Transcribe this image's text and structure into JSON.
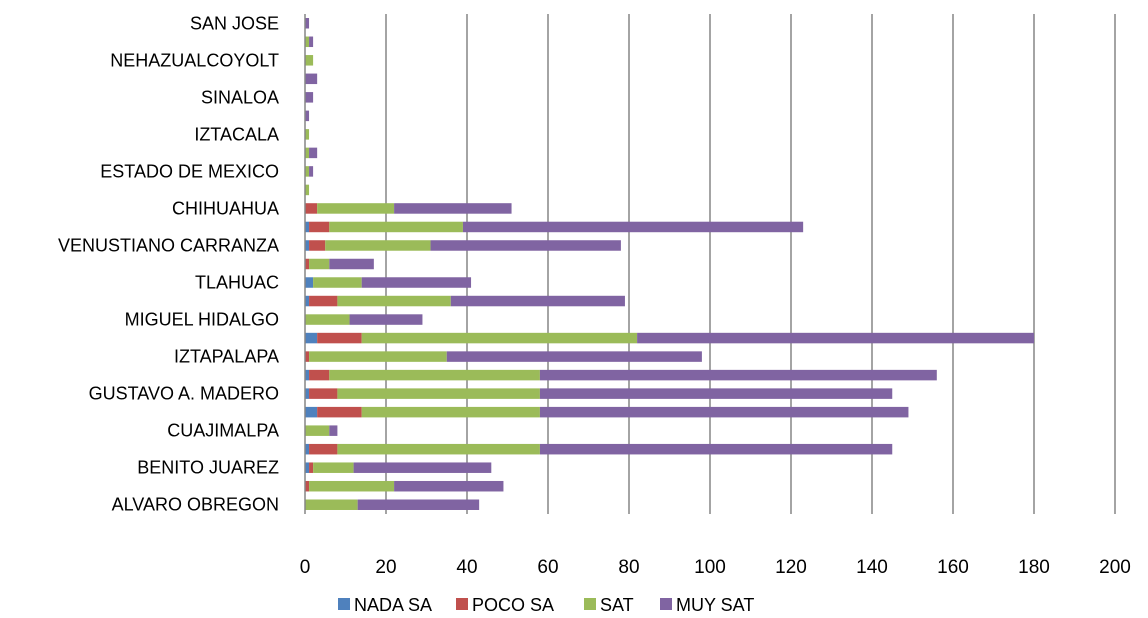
{
  "chart_data": {
    "type": "bar",
    "orientation": "horizontal",
    "stacked": true,
    "categories": [
      "ALVARO OBREGON",
      "",
      "BENITO JUAREZ",
      "",
      "CUAJIMALPA",
      "",
      "GUSTAVO A. MADERO",
      "",
      "IZTAPALAPA",
      "",
      "MIGUEL HIDALGO",
      "",
      "TLAHUAC",
      "",
      "VENUSTIANO CARRANZA",
      "",
      "CHIHUAHUA",
      "",
      "ESTADO DE MEXICO",
      "",
      "IZTACALA",
      "",
      "SINALOA",
      "",
      "NEHAZUALCOYOLT",
      "",
      "SAN JOSE"
    ],
    "series": [
      {
        "name": "NADA SA",
        "color": "#4F81BD",
        "values": [
          0,
          0,
          1,
          1,
          0,
          3,
          1,
          1,
          0,
          3,
          0,
          1,
          2,
          0,
          1,
          1,
          0,
          0,
          0,
          0,
          0,
          0,
          0,
          0,
          0,
          0,
          0
        ]
      },
      {
        "name": "POCO SA",
        "color": "#C0504D",
        "values": [
          0,
          1,
          1,
          7,
          0,
          11,
          7,
          5,
          1,
          11,
          0,
          7,
          0,
          1,
          4,
          5,
          3,
          0,
          0,
          0,
          0,
          0,
          0,
          0,
          0,
          0,
          0
        ]
      },
      {
        "name": "SAT",
        "color": "#9BBB59",
        "values": [
          13,
          21,
          10,
          50,
          6,
          44,
          50,
          52,
          34,
          68,
          11,
          28,
          12,
          5,
          26,
          33,
          19,
          1,
          1,
          1,
          1,
          0,
          0,
          0,
          2,
          1,
          0
        ]
      },
      {
        "name": "MUY SAT",
        "color": "#8064A2",
        "values": [
          30,
          27,
          34,
          87,
          2,
          91,
          87,
          98,
          63,
          98,
          18,
          43,
          27,
          11,
          47,
          84,
          29,
          0,
          1,
          2,
          0,
          1,
          2,
          3,
          0,
          1,
          1
        ]
      }
    ],
    "xlim": [
      0,
      200
    ],
    "xticks": [
      "0",
      "20",
      "40",
      "60",
      "80",
      "100",
      "120",
      "140",
      "160",
      "180",
      "200"
    ],
    "grid": "vertical",
    "legend": "bottom"
  }
}
